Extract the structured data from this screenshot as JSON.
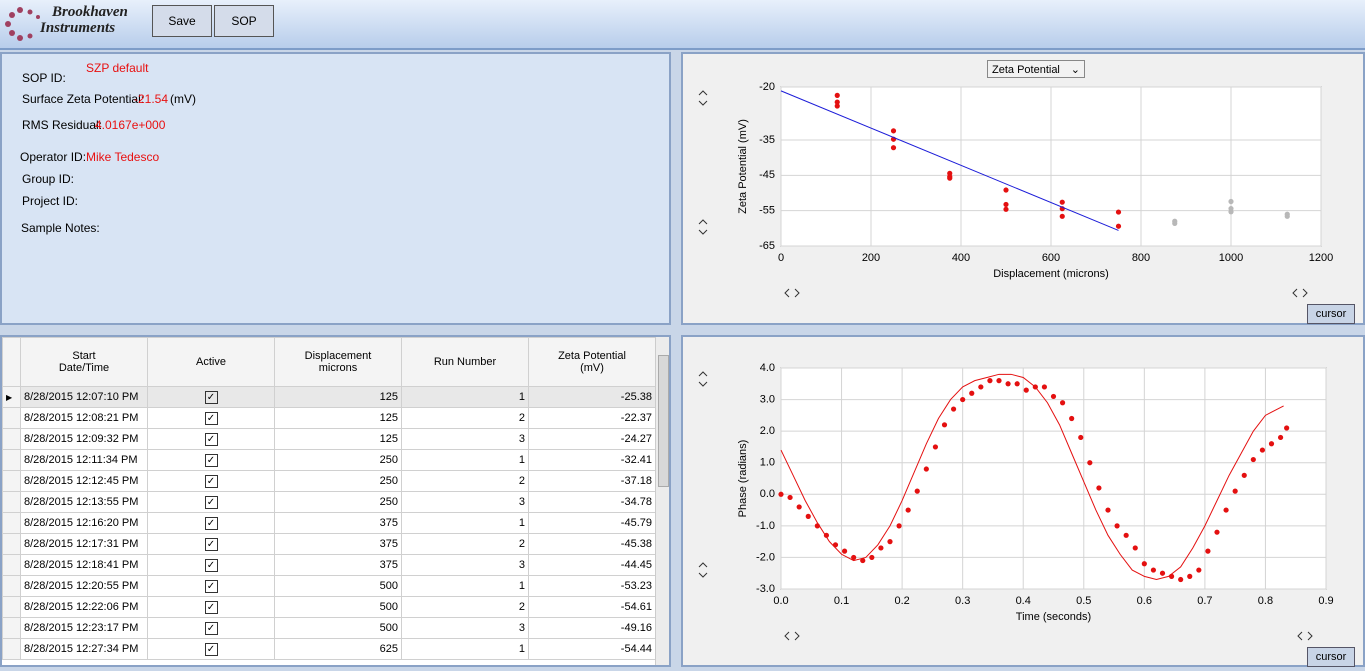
{
  "toolbar": {
    "logo": [
      "Brookhaven",
      "Instruments"
    ],
    "buttons": [
      "Save",
      "SOP"
    ]
  },
  "info": {
    "sop_id": {
      "label": "SOP ID:",
      "value": "SZP default"
    },
    "surface_zeta": {
      "label": "Surface Zeta Potential:",
      "value": -21.54,
      "unit": "(mV)"
    },
    "rms_residual": {
      "label": "RMS Residual:",
      "value": "4.0167e+000"
    },
    "operator_id": {
      "label": "Operator ID:",
      "value": "Mike Tedesco"
    },
    "group_id": {
      "label": "Group ID:"
    },
    "project_id": {
      "label": "Project ID:"
    },
    "sample_notes": {
      "label": "Sample Notes:"
    }
  },
  "table": {
    "headers": [
      "Start\nDate/Time",
      "Active",
      "Displacement\nmicrons",
      "Run Number",
      "Zeta Potential\n(mV)"
    ],
    "rows": [
      [
        "8/28/2015 12:07:10 PM",
        true,
        125,
        1,
        -25.38
      ],
      [
        "8/28/2015 12:08:21 PM",
        true,
        125,
        2,
        -22.37
      ],
      [
        "8/28/2015 12:09:32 PM",
        true,
        125,
        3,
        -24.27
      ],
      [
        "8/28/2015 12:11:34 PM",
        true,
        250,
        1,
        -32.41
      ],
      [
        "8/28/2015 12:12:45 PM",
        true,
        250,
        2,
        -37.18
      ],
      [
        "8/28/2015 12:13:55 PM",
        true,
        250,
        3,
        -34.78
      ],
      [
        "8/28/2015 12:16:20 PM",
        true,
        375,
        1,
        -45.79
      ],
      [
        "8/28/2015 12:17:31 PM",
        true,
        375,
        2,
        -45.38
      ],
      [
        "8/28/2015 12:18:41 PM",
        true,
        375,
        3,
        -44.45
      ],
      [
        "8/28/2015 12:20:55 PM",
        true,
        500,
        1,
        -53.23
      ],
      [
        "8/28/2015 12:22:06 PM",
        true,
        500,
        2,
        -54.61
      ],
      [
        "8/28/2015 12:23:17 PM",
        true,
        500,
        3,
        -49.16
      ],
      [
        "8/28/2015 12:27:34 PM",
        true,
        625,
        1,
        -54.44
      ]
    ]
  },
  "chart_data": [
    {
      "type": "scatter",
      "dropdown": "Zeta Potential",
      "cursor_button": "cursor",
      "x_label": "Displacement (microns)",
      "y_label": "Zeta Potential (mV)",
      "xlim": [
        0,
        1200
      ],
      "xticks": [
        0,
        200,
        400,
        600,
        800,
        1000,
        1200
      ],
      "ylim": [
        -65,
        -20
      ],
      "yticks": [
        -20,
        -35,
        -45,
        -55,
        -65
      ],
      "grid": true,
      "series": [
        {
          "color": "#e41010",
          "x": [
            125,
            125,
            125,
            250,
            250,
            250,
            375,
            375,
            375,
            500,
            500,
            500,
            625,
            625,
            625,
            750,
            750
          ],
          "values": [
            -25.38,
            -22.37,
            -24.27,
            -32.41,
            -37.18,
            -34.78,
            -45.79,
            -45.38,
            -44.45,
            -53.23,
            -54.61,
            -49.16,
            -54.44,
            -52.6,
            -56.6,
            -55.4,
            -59.4
          ]
        },
        {
          "color": "#b8b8b8",
          "x": [
            875,
            875,
            1000,
            1000,
            1000,
            1125,
            1125
          ],
          "values": [
            -58,
            -58.6,
            -52.4,
            -54.4,
            -55.3,
            -56,
            -56.6
          ]
        },
        {
          "color": "#1c1cd8",
          "style": "line",
          "x": [
            0,
            750
          ],
          "values": [
            -21.1,
            -60.6
          ]
        }
      ]
    },
    {
      "type": "scatter",
      "cursor_button": "cursor",
      "x_label": "Time (seconds)",
      "y_label": "Phase (radians)",
      "xlim": [
        0,
        0.9
      ],
      "xticks": [
        {
          "value": 0,
          "label": "0.0"
        },
        0.1,
        0.2,
        0.3,
        0.4,
        0.5,
        0.6,
        0.7,
        0.8,
        0.9
      ],
      "ylim": [
        -3,
        4
      ],
      "yticks": [
        {
          "value": 4,
          "label": "4.0"
        },
        {
          "value": 3,
          "label": "3.0"
        },
        {
          "value": 2,
          "label": "2.0"
        },
        {
          "value": 1,
          "label": "1.0"
        },
        {
          "value": 0,
          "label": "0.0"
        },
        {
          "value": -1,
          "label": "-1.0"
        },
        {
          "value": -2,
          "label": "-2.0"
        },
        {
          "value": -3,
          "label": "-3.0"
        }
      ],
      "grid": true,
      "series": [
        {
          "color": "#e41010",
          "x": [
            0,
            0.015,
            0.03,
            0.045,
            0.06,
            0.075,
            0.09,
            0.105,
            0.12,
            0.135,
            0.15,
            0.165,
            0.18,
            0.195,
            0.21,
            0.225,
            0.24,
            0.255,
            0.27,
            0.285,
            0.3,
            0.315,
            0.33,
            0.345,
            0.36,
            0.375,
            0.39,
            0.405,
            0.42,
            0.435,
            0.45,
            0.465,
            0.48,
            0.495,
            0.51,
            0.525,
            0.54,
            0.555,
            0.57,
            0.585,
            0.6,
            0.615,
            0.63,
            0.645,
            0.66,
            0.675,
            0.69,
            0.705,
            0.72,
            0.735,
            0.75,
            0.765,
            0.78,
            0.795,
            0.81,
            0.825,
            0.835
          ],
          "values": [
            0,
            -0.1,
            -0.4,
            -0.7,
            -1,
            -1.3,
            -1.6,
            -1.8,
            -2,
            -2.1,
            -2,
            -1.7,
            -1.5,
            -1,
            -0.5,
            0.1,
            0.8,
            1.5,
            2.2,
            2.7,
            3,
            3.2,
            3.4,
            3.6,
            3.6,
            3.5,
            3.5,
            3.3,
            3.4,
            3.4,
            3.1,
            2.9,
            2.4,
            1.8,
            1,
            0.2,
            -0.5,
            -1,
            -1.3,
            -1.7,
            -2.2,
            -2.4,
            -2.5,
            -2.6,
            -2.7,
            -2.6,
            -2.4,
            -1.8,
            -1.2,
            -0.5,
            0.1,
            0.6,
            1.1,
            1.4,
            1.6,
            1.8,
            2.1
          ]
        },
        {
          "color": "#e41010",
          "style": "line",
          "x": [
            0,
            0.02,
            0.04,
            0.06,
            0.08,
            0.1,
            0.12,
            0.14,
            0.16,
            0.18,
            0.2,
            0.22,
            0.24,
            0.26,
            0.28,
            0.3,
            0.32,
            0.34,
            0.36,
            0.38,
            0.4,
            0.42,
            0.44,
            0.46,
            0.48,
            0.5,
            0.52,
            0.54,
            0.56,
            0.58,
            0.6,
            0.62,
            0.64,
            0.66,
            0.68,
            0.7,
            0.72,
            0.74,
            0.76,
            0.78,
            0.8,
            0.83
          ],
          "values": [
            1.4,
            0.6,
            -0.2,
            -0.9,
            -1.5,
            -1.9,
            -2.1,
            -2,
            -1.6,
            -1,
            -0.2,
            0.7,
            1.6,
            2.4,
            3,
            3.4,
            3.6,
            3.7,
            3.8,
            3.8,
            3.7,
            3.4,
            2.9,
            2.2,
            1.3,
            0.4,
            -0.5,
            -1.3,
            -1.9,
            -2.4,
            -2.6,
            -2.7,
            -2.6,
            -2.3,
            -1.7,
            -1,
            -0.2,
            0.6,
            1.3,
            2,
            2.5,
            2.8
          ]
        }
      ]
    }
  ]
}
